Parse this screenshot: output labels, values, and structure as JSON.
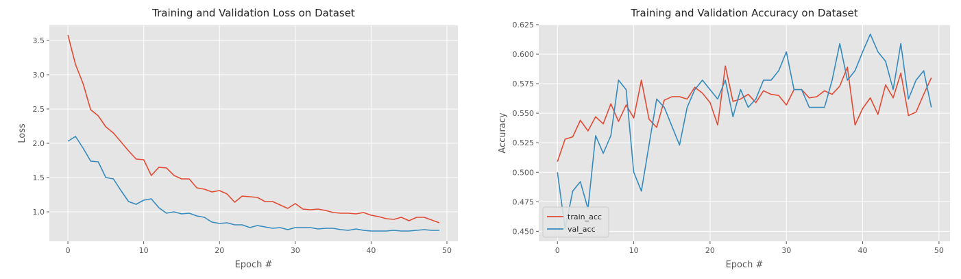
{
  "chart_data": [
    {
      "type": "line",
      "title": "Training and Validation Loss on Dataset",
      "xlabel": "Epoch #",
      "ylabel": "Loss",
      "xlim": [
        -2.45,
        51.45
      ],
      "ylim": [
        0.57,
        3.72
      ],
      "xticks": [
        0,
        10,
        20,
        30,
        40,
        50
      ],
      "yticks": [
        1.0,
        1.5,
        2.0,
        2.5,
        3.0,
        3.5
      ],
      "ytick_labels": [
        "1.0",
        "1.5",
        "2.0",
        "2.5",
        "3.0",
        "3.5"
      ],
      "grid": true,
      "x": [
        0,
        1,
        2,
        3,
        4,
        5,
        6,
        7,
        8,
        9,
        10,
        11,
        12,
        13,
        14,
        15,
        16,
        17,
        18,
        19,
        20,
        21,
        22,
        23,
        24,
        25,
        26,
        27,
        28,
        29,
        30,
        31,
        32,
        33,
        34,
        35,
        36,
        37,
        38,
        39,
        40,
        41,
        42,
        43,
        44,
        45,
        46,
        47,
        48,
        49
      ],
      "series": [
        {
          "color": "#e24a33",
          "values": [
            3.58,
            3.15,
            2.87,
            2.49,
            2.4,
            2.24,
            2.15,
            2.02,
            1.89,
            1.77,
            1.76,
            1.53,
            1.65,
            1.64,
            1.53,
            1.48,
            1.48,
            1.35,
            1.33,
            1.29,
            1.31,
            1.26,
            1.14,
            1.23,
            1.22,
            1.21,
            1.15,
            1.15,
            1.1,
            1.05,
            1.12,
            1.04,
            1.03,
            1.04,
            1.02,
            0.99,
            0.98,
            0.98,
            0.97,
            0.99,
            0.95,
            0.93,
            0.9,
            0.89,
            0.92,
            0.87,
            0.92,
            0.92,
            0.88,
            0.84
          ]
        },
        {
          "color": "#348abd",
          "values": [
            2.03,
            2.1,
            1.93,
            1.74,
            1.73,
            1.5,
            1.48,
            1.31,
            1.15,
            1.11,
            1.17,
            1.19,
            1.06,
            0.98,
            1.0,
            0.97,
            0.98,
            0.94,
            0.92,
            0.85,
            0.83,
            0.84,
            0.81,
            0.81,
            0.77,
            0.8,
            0.78,
            0.76,
            0.77,
            0.74,
            0.77,
            0.77,
            0.77,
            0.75,
            0.76,
            0.76,
            0.74,
            0.73,
            0.75,
            0.73,
            0.72,
            0.72,
            0.72,
            0.73,
            0.72,
            0.72,
            0.73,
            0.74,
            0.73,
            0.73
          ]
        }
      ]
    },
    {
      "type": "line",
      "title": "Training and Validation Accuracy on Dataset",
      "xlabel": "Epoch #",
      "ylabel": "Accuracy",
      "xlim": [
        -2.45,
        51.45
      ],
      "ylim": [
        0.4415,
        0.625
      ],
      "xticks": [
        0,
        10,
        20,
        30,
        40,
        50
      ],
      "yticks": [
        0.45,
        0.475,
        0.5,
        0.525,
        0.55,
        0.575,
        0.6,
        0.625
      ],
      "ytick_labels": [
        "0.450",
        "0.475",
        "0.500",
        "0.525",
        "0.550",
        "0.575",
        "0.600",
        "0.625"
      ],
      "grid": true,
      "legend_position": "bottom-left",
      "x": [
        0,
        1,
        2,
        3,
        4,
        5,
        6,
        7,
        8,
        9,
        10,
        11,
        12,
        13,
        14,
        15,
        16,
        17,
        18,
        19,
        20,
        21,
        22,
        23,
        24,
        25,
        26,
        27,
        28,
        29,
        30,
        31,
        32,
        33,
        34,
        35,
        36,
        37,
        38,
        39,
        40,
        41,
        42,
        43,
        44,
        45,
        46,
        47,
        48,
        49
      ],
      "series": [
        {
          "name": "train_acc",
          "color": "#e24a33",
          "values": [
            0.509,
            0.528,
            0.53,
            0.544,
            0.535,
            0.547,
            0.541,
            0.558,
            0.543,
            0.557,
            0.546,
            0.578,
            0.545,
            0.538,
            0.561,
            0.564,
            0.564,
            0.562,
            0.572,
            0.567,
            0.559,
            0.54,
            0.59,
            0.56,
            0.562,
            0.566,
            0.559,
            0.569,
            0.566,
            0.565,
            0.557,
            0.57,
            0.57,
            0.563,
            0.564,
            0.569,
            0.566,
            0.573,
            0.589,
            0.54,
            0.554,
            0.563,
            0.549,
            0.574,
            0.563,
            0.584,
            0.548,
            0.551,
            0.566,
            0.58
          ]
        },
        {
          "name": "val_acc",
          "color": "#348abd",
          "values": [
            0.5,
            0.452,
            0.484,
            0.492,
            0.469,
            0.531,
            0.516,
            0.531,
            0.578,
            0.57,
            0.5,
            0.484,
            0.523,
            0.562,
            0.555,
            0.539,
            0.523,
            0.555,
            0.57,
            0.578,
            0.57,
            0.562,
            0.578,
            0.547,
            0.57,
            0.555,
            0.562,
            0.578,
            0.578,
            0.586,
            0.602,
            0.57,
            0.57,
            0.555,
            0.555,
            0.555,
            0.578,
            0.609,
            0.578,
            0.586,
            0.602,
            0.617,
            0.602,
            0.594,
            0.57,
            0.609,
            0.562,
            0.578,
            0.586,
            0.555
          ]
        }
      ]
    }
  ]
}
